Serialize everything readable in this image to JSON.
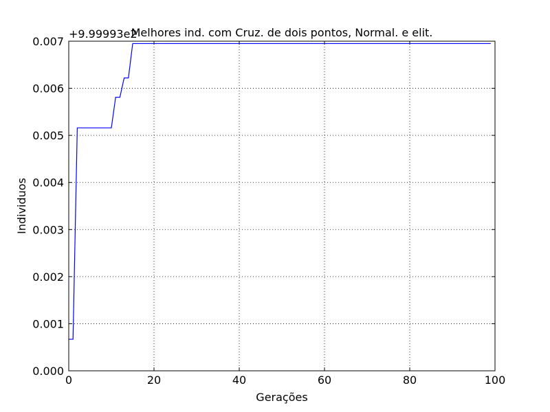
{
  "chart_data": {
    "type": "line",
    "title": "Melhores ind. com Cruz. de dois pontos, Normal. e elit.",
    "xlabel": "Gerações",
    "ylabel": "Individuos",
    "y_offset_label": "+9.99993e2",
    "xlim": [
      0,
      100
    ],
    "ylim": [
      0.0,
      0.007
    ],
    "x_ticks": [
      "0",
      "20",
      "40",
      "60",
      "80",
      "100"
    ],
    "y_ticks": [
      "0.000",
      "0.001",
      "0.002",
      "0.003",
      "0.004",
      "0.005",
      "0.006",
      "0.007"
    ],
    "grid": true,
    "series": [
      {
        "color": "#0000ff",
        "x": [
          0,
          1,
          2,
          3,
          4,
          5,
          6,
          7,
          8,
          9,
          10,
          11,
          12,
          13,
          14,
          15,
          16,
          20,
          30,
          40,
          50,
          60,
          70,
          80,
          90,
          99
        ],
        "y": [
          0.00067,
          0.00067,
          0.00516,
          0.00516,
          0.00516,
          0.00516,
          0.00516,
          0.00516,
          0.00516,
          0.00516,
          0.00516,
          0.00581,
          0.00581,
          0.00622,
          0.00622,
          0.00695,
          0.00695,
          0.00695,
          0.00695,
          0.00695,
          0.00695,
          0.00695,
          0.00695,
          0.00695,
          0.00695,
          0.00695
        ]
      }
    ]
  }
}
